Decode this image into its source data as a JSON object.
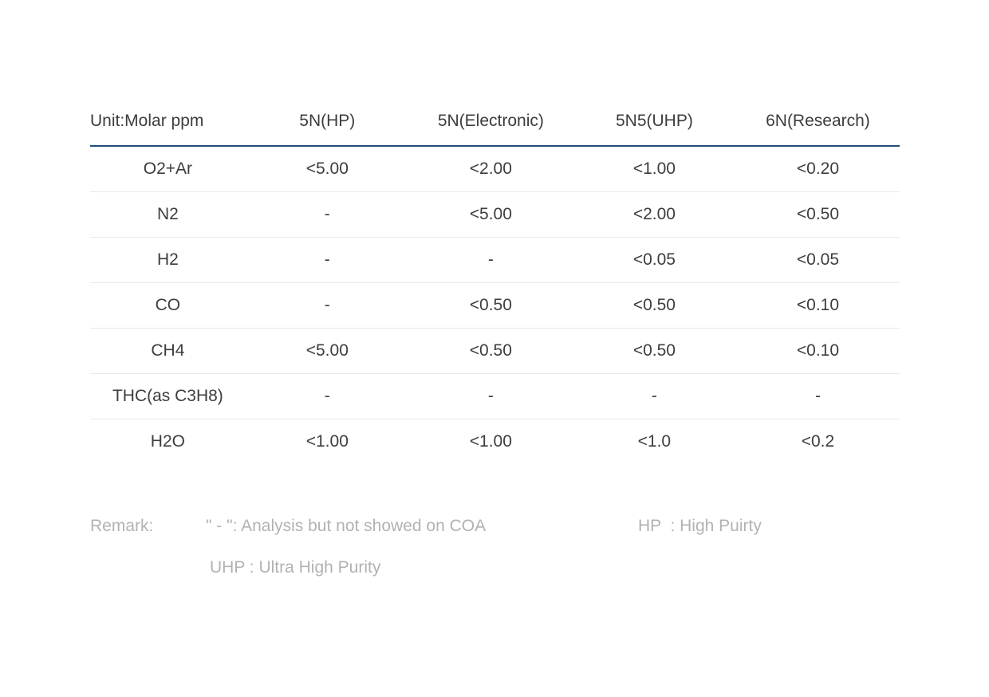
{
  "page": {
    "background": "#ffffff"
  },
  "colors": {
    "text": "#3d3d3d",
    "header_underline": "#1f4e79",
    "row_divider": "#e9e9e9",
    "remark_text": "#b2b2b2"
  },
  "table": {
    "unit_label": "Unit:Molar ppm",
    "columns": [
      "5N(HP)",
      "5N(Electronic)",
      "5N5(UHP)",
      "6N(Research)"
    ],
    "rows": [
      {
        "label": "O2+Ar",
        "values": [
          "<5.00",
          "<2.00",
          "<1.00",
          "<0.20"
        ]
      },
      {
        "label": "N2",
        "values": [
          "-",
          "<5.00",
          "<2.00",
          "<0.50"
        ]
      },
      {
        "label": "H2",
        "values": [
          "-",
          "-",
          "<0.05",
          "<0.05"
        ]
      },
      {
        "label": "CO",
        "values": [
          "-",
          "<0.50",
          "<0.50",
          "<0.10"
        ]
      },
      {
        "label": "CH4",
        "values": [
          "<5.00",
          "<0.50",
          "<0.50",
          "<0.10"
        ]
      },
      {
        "label": "THC(as C3H8)",
        "values": [
          "-",
          "-",
          "-",
          "-"
        ]
      },
      {
        "label": "H2O",
        "values": [
          "<1.00",
          "<1.00",
          "<1.0",
          "<0.2"
        ]
      }
    ]
  },
  "remark": {
    "label": "Remark:",
    "dash_note": "\" - \": Analysis but not showed on COA",
    "hp_note": "HP  : High Puirty",
    "uhp_note": "UHP : Ultra High Purity"
  }
}
